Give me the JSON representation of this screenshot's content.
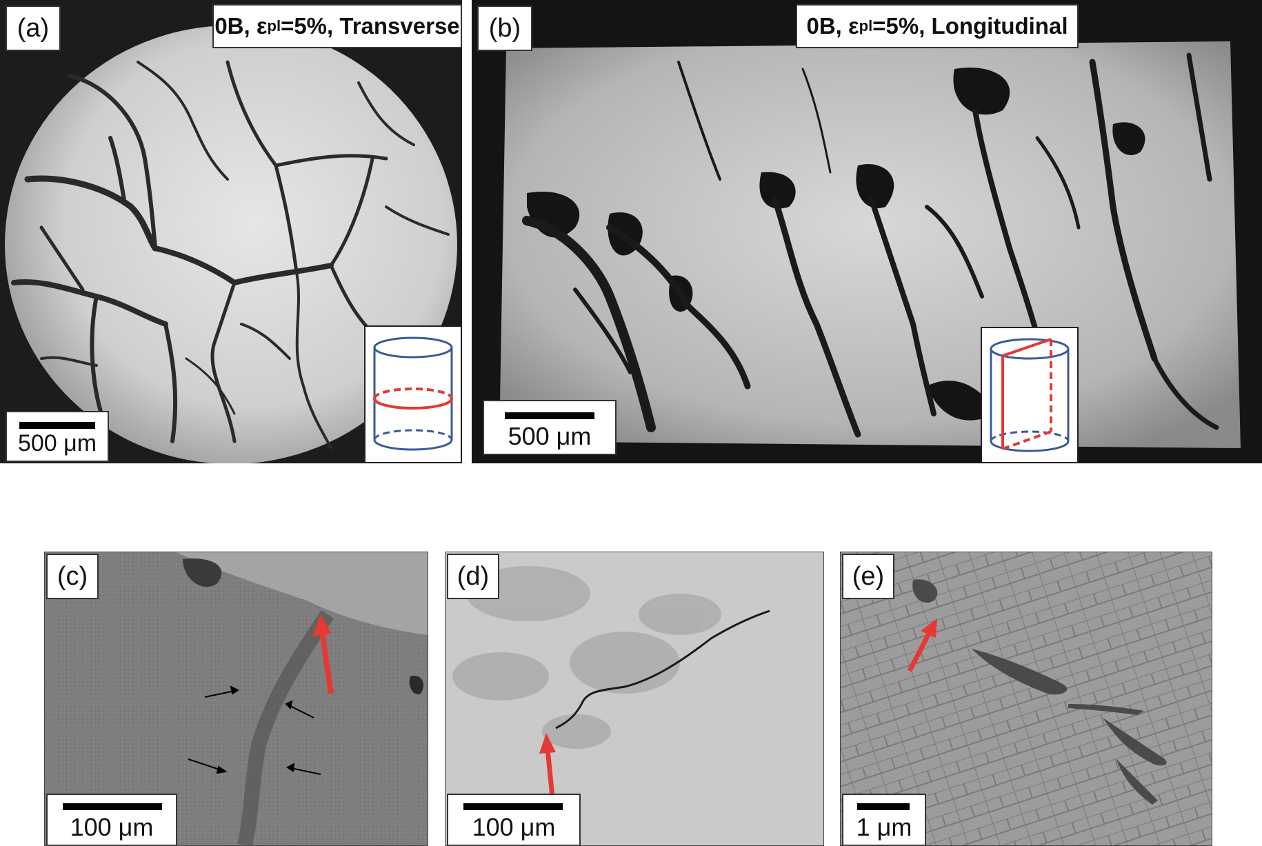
{
  "panels": {
    "a": {
      "label": "(a)",
      "title_prefix": "0B, ε",
      "title_sub": "pl",
      "title_suffix": "=5%, Transverse",
      "scale": "500 μm",
      "inset_icon": "cylinder-transverse-section-icon"
    },
    "b": {
      "label": "(b)",
      "title_prefix": "0B, ε",
      "title_sub": "pl",
      "title_suffix": "=5%, Longitudinal",
      "scale": "500 μm",
      "inset_icon": "cylinder-longitudinal-section-icon"
    },
    "c": {
      "label": "(c)",
      "scale": "100 μm"
    },
    "d": {
      "label": "(d)",
      "scale": "100 μm"
    },
    "e": {
      "label": "(e)",
      "scale": "1 μm"
    }
  },
  "colors": {
    "cylinder_outline": "#3a5a9a",
    "section_plane": "#e53935",
    "arrow_red": "#e53935",
    "panel_dark_bg": "#1a1a1a",
    "sem_gray": "#8a8a8a"
  }
}
